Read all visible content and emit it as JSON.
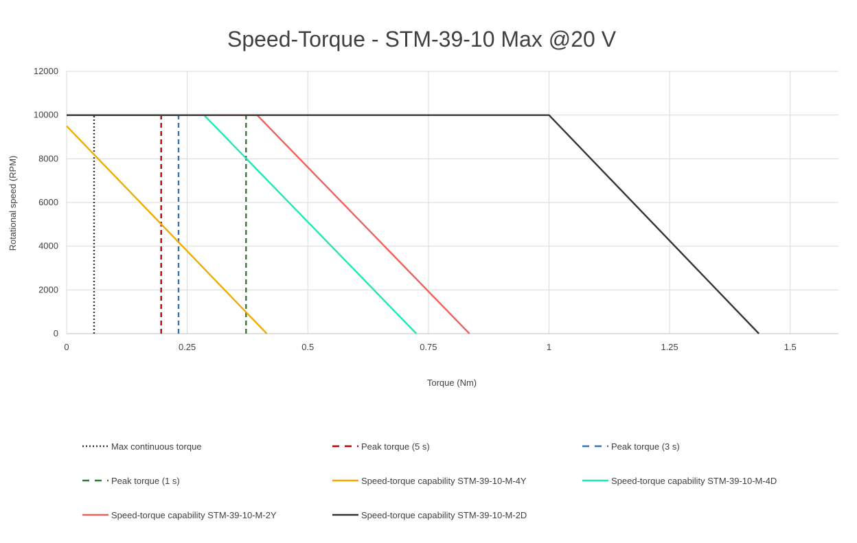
{
  "chart_data": {
    "type": "line",
    "title": "Speed-Torque -  STM-39-10 Max @20 V",
    "xlabel": "Torque (Nm)",
    "ylabel": "Rotational speed (RPM)",
    "xlim": [
      0,
      1.6
    ],
    "ylim": [
      0,
      12000
    ],
    "x_ticks": [
      0,
      0.25,
      0.5,
      0.75,
      1,
      1.25,
      1.5
    ],
    "x_tick_labels": [
      "0",
      "0.25",
      "0.5",
      "0.75",
      "1",
      "1.25",
      "1.5"
    ],
    "y_ticks": [
      0,
      2000,
      4000,
      6000,
      8000,
      10000,
      12000
    ],
    "y_tick_labels": [
      "0",
      "2000",
      "4000",
      "6000",
      "8000",
      "10000",
      "12000"
    ],
    "grid": true,
    "legend_position": "bottom",
    "series": [
      {
        "name": "Max continuous torque",
        "color": "#333333",
        "dash": "dotted",
        "x": [
          0.057,
          0.057
        ],
        "y": [
          0,
          10000
        ]
      },
      {
        "name": "Peak torque (5 s)",
        "color": "#c00000",
        "dash": "dashed",
        "x": [
          0.196,
          0.196
        ],
        "y": [
          0,
          10000
        ]
      },
      {
        "name": "Peak torque (3 s)",
        "color": "#2e75b6",
        "dash": "dashed",
        "x": [
          0.232,
          0.232
        ],
        "y": [
          0,
          10000
        ]
      },
      {
        "name": "Peak torque (1 s)",
        "color": "#2e7d32",
        "dash": "dashed",
        "x": [
          0.372,
          0.372
        ],
        "y": [
          0,
          10000
        ]
      },
      {
        "name": "Speed-torque capability STM-39-10-M-4Y",
        "color": "#f0ac00",
        "dash": "solid",
        "x": [
          0,
          0.415
        ],
        "y": [
          9500,
          0
        ]
      },
      {
        "name": "Speed-torque capability STM-39-10-M-4D",
        "color": "#1de9b6",
        "dash": "solid",
        "x": [
          0,
          0.285,
          0.725
        ],
        "y": [
          10000,
          10000,
          0
        ]
      },
      {
        "name": "Speed-torque capability STM-39-10-M-2Y",
        "color": "#f0605a",
        "dash": "solid",
        "x": [
          0,
          0.395,
          0.835
        ],
        "y": [
          10000,
          10000,
          0
        ]
      },
      {
        "name": "Speed-torque capability STM-39-10-M-2D",
        "color": "#333333",
        "dash": "solid",
        "x": [
          0,
          1.0,
          1.435
        ],
        "y": [
          10000,
          10000,
          0
        ]
      }
    ]
  }
}
